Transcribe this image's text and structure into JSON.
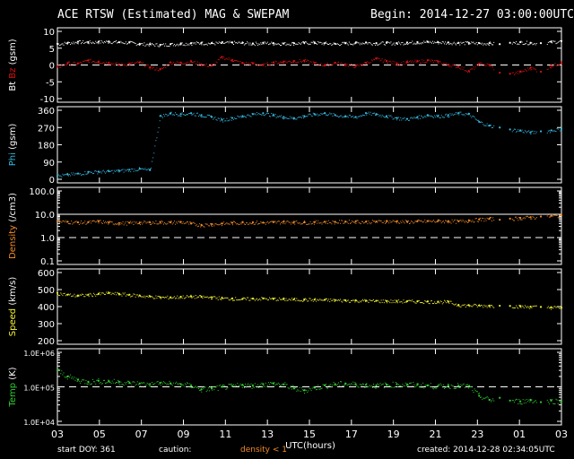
{
  "header": {
    "title": "ACE RTSW (Estimated) MAG & SWEPAM",
    "begin": "Begin: 2014-12-27 03:00:00UTC"
  },
  "footer": {
    "start_doy": "start DOY: 361",
    "caution_label": "caution:",
    "caution_text": "density < 1",
    "created": "created: 2014-12-28 02:34:05UTC"
  },
  "colors": {
    "background": "#000000",
    "bt": "#ffffff",
    "bz": "#d81010",
    "phi": "#35b8e0",
    "density": "#f08a28",
    "speed": "#f2f233",
    "temp": "#30d030",
    "caution": "#f08a28"
  },
  "chart_data": {
    "type": "scatter",
    "x_axis": {
      "label": "UTC(hours)",
      "ticks": [
        "03",
        "05",
        "07",
        "09",
        "11",
        "13",
        "15",
        "17",
        "19",
        "21",
        "23",
        "01",
        "03"
      ],
      "range_hours": [
        0,
        24
      ]
    },
    "panels": [
      {
        "id": "mag",
        "ylabel_parts": [
          {
            "text": "Bt",
            "color": "#ffffff"
          },
          {
            "text": "Bz",
            "color": "#d81010"
          },
          {
            "text": "(gsm)",
            "color": "#ffffff"
          }
        ],
        "scale": "linear",
        "ylim": [
          -10,
          10
        ],
        "yticks": [
          "10",
          "5",
          "0",
          "-5",
          "-10"
        ],
        "ytick_values": [
          10,
          5,
          0,
          -5,
          -10
        ],
        "dashed_ref": [
          0
        ],
        "series": [
          {
            "name": "Bt",
            "color": "#ffffff",
            "values": [
              6.3,
              6.6,
              6.9,
              6.8,
              6.9,
              7.0,
              6.8,
              6.7,
              6.3,
              6.2,
              6.0,
              6.2,
              6.4,
              6.5,
              6.6,
              6.5,
              6.6,
              6.7,
              6.6,
              6.4,
              6.6,
              6.5,
              6.4,
              6.5,
              6.6,
              6.7,
              6.5,
              6.3,
              6.5,
              6.6,
              6.7,
              6.5,
              6.6,
              6.5,
              6.7,
              6.8,
              6.9,
              6.8,
              6.7,
              6.6,
              6.6,
              6.5,
              6.5,
              6.2,
              6.6,
              6.8,
              6.6,
              6.5,
              6.9,
              7.1
            ]
          },
          {
            "name": "Bz",
            "color": "#d81010",
            "values": [
              -0.5,
              0.6,
              0.5,
              1.4,
              1.0,
              0.7,
              0.2,
              0.4,
              0.8,
              -0.7,
              -1.3,
              0.8,
              0.7,
              1.1,
              0.2,
              -0.2,
              2.4,
              1.5,
              0.6,
              0.5,
              0.0,
              0.8,
              1.0,
              1.2,
              1.3,
              0.6,
              0.0,
              0.7,
              0.2,
              -0.3,
              0.7,
              1.9,
              1.2,
              0.5,
              0.9,
              1.1,
              1.4,
              1.0,
              0.1,
              -0.4,
              -1.8,
              0.4,
              0.0,
              -2.3,
              -2.6,
              -2.0,
              -0.8,
              -2.0,
              -0.2,
              0.8
            ]
          }
        ]
      },
      {
        "id": "phi",
        "ylabel_parts": [
          {
            "text": "Phi",
            "color": "#35b8e0"
          },
          {
            "text": "(gsm)",
            "color": "#ffffff"
          }
        ],
        "scale": "linear",
        "ylim": [
          0,
          360
        ],
        "yticks": [
          "360",
          "270",
          "180",
          "90",
          "0"
        ],
        "ytick_values": [
          360,
          270,
          180,
          90,
          0
        ],
        "dashed_ref": [],
        "series": [
          {
            "name": "Phi",
            "color": "#35b8e0",
            "values": [
              18,
              25,
              30,
              38,
              40,
              42,
              45,
              50,
              55,
              48,
              330,
              345,
              340,
              345,
              335,
              325,
              310,
              320,
              330,
              340,
              345,
              335,
              325,
              320,
              330,
              340,
              345,
              335,
              330,
              325,
              345,
              340,
              330,
              320,
              315,
              325,
              335,
              330,
              335,
              345,
              340,
              300,
              280,
              270,
              260,
              255,
              245,
              250,
              255,
              265
            ]
          }
        ]
      },
      {
        "id": "density",
        "ylabel_parts": [
          {
            "text": "Density",
            "color": "#f08a28"
          },
          {
            "text": "(/cm3)",
            "color": "#ffffff"
          }
        ],
        "scale": "log",
        "ylim": [
          0.1,
          100
        ],
        "yticks": [
          "100.0",
          "10.0",
          "1.0",
          "0.1"
        ],
        "ytick_values": [
          100,
          10,
          1,
          0.1
        ],
        "dashed_ref": [
          1
        ],
        "solid_ref": [
          10
        ],
        "series": [
          {
            "name": "Density",
            "color": "#f08a28",
            "values": [
              5.0,
              4.8,
              4.5,
              4.6,
              5.0,
              4.4,
              4.2,
              4.3,
              4.4,
              4.5,
              4.6,
              4.5,
              4.7,
              4.0,
              3.5,
              3.8,
              4.0,
              4.3,
              4.5,
              4.5,
              4.4,
              4.6,
              4.8,
              4.7,
              4.5,
              4.6,
              4.8,
              4.7,
              4.9,
              5.0,
              4.8,
              4.9,
              5.1,
              5.0,
              4.8,
              5.0,
              5.1,
              5.2,
              5.1,
              5.0,
              5.5,
              6.0,
              6.5,
              5.8,
              6.5,
              7.0,
              7.5,
              8.0,
              8.5,
              9.0
            ]
          }
        ]
      },
      {
        "id": "speed",
        "ylabel_parts": [
          {
            "text": "Speed",
            "color": "#f2f233"
          },
          {
            "text": "(km/s)",
            "color": "#ffffff"
          }
        ],
        "scale": "linear",
        "ylim": [
          200,
          600
        ],
        "yticks": [
          "600",
          "500",
          "400",
          "300",
          "200"
        ],
        "ytick_values": [
          600,
          500,
          400,
          300,
          200
        ],
        "dashed_ref": [],
        "series": [
          {
            "name": "Speed",
            "color": "#f2f233",
            "values": [
              480,
              470,
              465,
              470,
              475,
              480,
              475,
              470,
              465,
              460,
              455,
              455,
              458,
              460,
              458,
              455,
              450,
              448,
              445,
              447,
              448,
              446,
              444,
              443,
              442,
              441,
              440,
              438,
              437,
              436,
              435,
              434,
              433,
              432,
              432,
              431,
              430,
              429,
              428,
              410,
              408,
              407,
              406,
              405,
              404,
              402,
              400,
              398,
              396,
              395
            ]
          }
        ]
      },
      {
        "id": "temp",
        "ylabel_parts": [
          {
            "text": "Temp",
            "color": "#30d030"
          },
          {
            "text": "(K)",
            "color": "#ffffff"
          }
        ],
        "scale": "log",
        "ylim": [
          10000,
          1000000
        ],
        "yticks": [
          "1.0E+06",
          "1.0E+05",
          "1.0E+04"
        ],
        "ytick_values": [
          1000000,
          100000,
          10000
        ],
        "dashed_ref": [
          100000
        ],
        "series": [
          {
            "name": "Temp",
            "color": "#30d030",
            "values": [
              300000,
              200000,
              160000,
              140000,
              150000,
              145000,
              140000,
              130000,
              125000,
              120000,
              130000,
              125000,
              120000,
              110000,
              85000,
              90000,
              100000,
              105000,
              115000,
              110000,
              120000,
              125000,
              118000,
              90000,
              80000,
              95000,
              110000,
              120000,
              125000,
              120000,
              115000,
              110000,
              115000,
              120000,
              118000,
              115000,
              110000,
              105000,
              110000,
              108000,
              105000,
              55000,
              42000,
              48000,
              40000,
              38000,
              42000,
              36000,
              40000,
              38000
            ]
          }
        ]
      }
    ],
    "gaps_hours": [
      [
        20.8,
        21.6
      ],
      [
        22.8,
        23.3
      ]
    ]
  }
}
